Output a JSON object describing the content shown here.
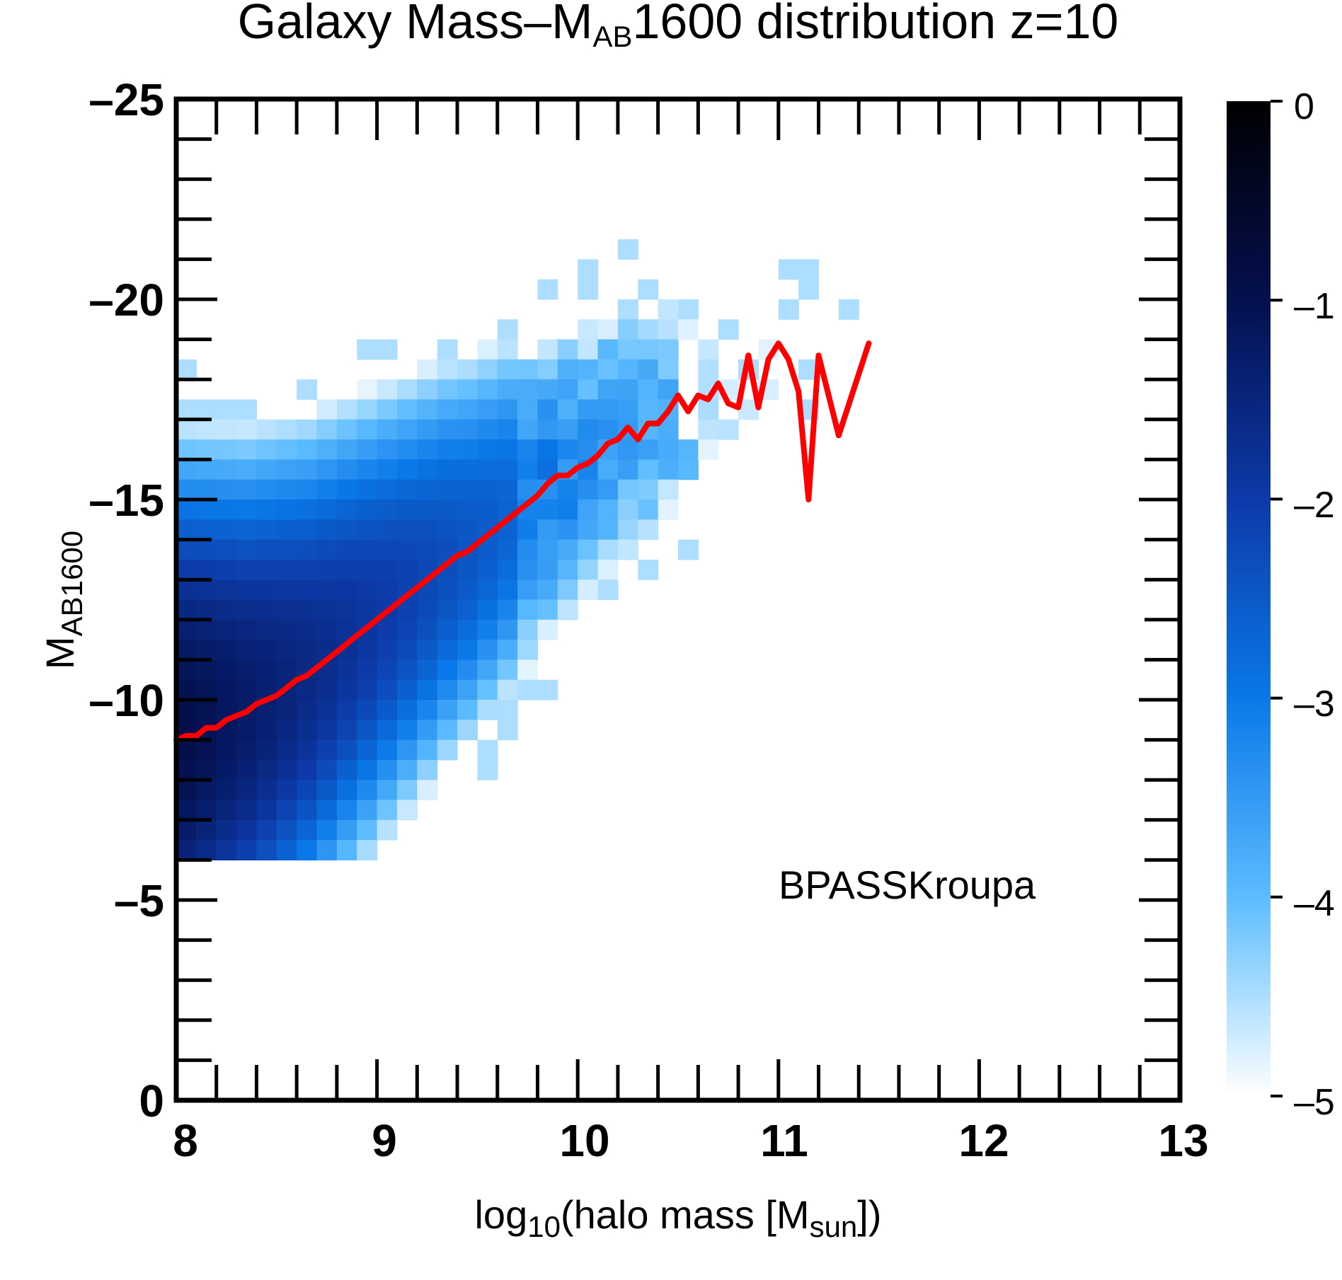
{
  "chart_data": {
    "type": "heatmap",
    "title": {
      "prefix": "Galaxy Mass–M",
      "subscript": "AB",
      "suffix": "1600 distribution z=10"
    },
    "xlabel": {
      "prefix": "log",
      "subscript": "10",
      "middle": "(halo mass [M",
      "subscript2": "sun",
      "suffix": "])"
    },
    "ylabel": {
      "main": "M",
      "subscript": "AB1600"
    },
    "xlim": [
      8,
      13
    ],
    "ylim": [
      0,
      -25
    ],
    "x_ticks": [
      "8",
      "9",
      "10",
      "11",
      "12",
      "13"
    ],
    "y_ticks": [
      "0",
      "–5",
      "–10",
      "–15",
      "–20",
      "–25"
    ],
    "annotation": "BPASSKroupa",
    "colorbar": {
      "range": [
        -5,
        0
      ],
      "ticks": [
        "0",
        "–1",
        "–2",
        "–3",
        "–4",
        "–5"
      ],
      "colors": [
        "#ffffff",
        "#5cbcff",
        "#0a78e8",
        "#0d3aa8",
        "#04104f",
        "#000000"
      ]
    },
    "density_band": {
      "description": "log10 fraction density; ridge follows median relation, width ~5 mag at low mass narrowing to scattered cells above log M ~ 10.5",
      "x_start": 8.0,
      "x_end": 11.5,
      "bin_x": 0.1,
      "bin_y": 0.5
    },
    "median_line": {
      "name": "median",
      "color": "#ff0000",
      "x": [
        8.0,
        8.05,
        8.1,
        8.15,
        8.2,
        8.25,
        8.3,
        8.35,
        8.4,
        8.45,
        8.5,
        8.55,
        8.6,
        8.65,
        8.7,
        8.75,
        8.8,
        8.85,
        8.9,
        8.95,
        9.0,
        9.05,
        9.1,
        9.15,
        9.2,
        9.25,
        9.3,
        9.35,
        9.4,
        9.45,
        9.5,
        9.55,
        9.6,
        9.65,
        9.7,
        9.75,
        9.8,
        9.85,
        9.9,
        9.95,
        10.0,
        10.05,
        10.1,
        10.15,
        10.2,
        10.25,
        10.3,
        10.35,
        10.4,
        10.45,
        10.5,
        10.55,
        10.6,
        10.65,
        10.7,
        10.75,
        10.8,
        10.85,
        10.9,
        10.95,
        11.0,
        11.05,
        11.1,
        11.15,
        11.2,
        11.3,
        11.45
      ],
      "y": [
        -9.0,
        -9.1,
        -9.1,
        -9.3,
        -9.3,
        -9.5,
        -9.6,
        -9.7,
        -9.9,
        -10.0,
        -10.1,
        -10.3,
        -10.5,
        -10.6,
        -10.8,
        -11.0,
        -11.2,
        -11.4,
        -11.6,
        -11.8,
        -12.0,
        -12.2,
        -12.4,
        -12.6,
        -12.8,
        -13.0,
        -13.2,
        -13.4,
        -13.6,
        -13.7,
        -13.9,
        -14.1,
        -14.3,
        -14.5,
        -14.7,
        -14.9,
        -15.1,
        -15.4,
        -15.6,
        -15.6,
        -15.8,
        -15.9,
        -16.1,
        -16.4,
        -16.5,
        -16.8,
        -16.5,
        -16.9,
        -16.9,
        -17.2,
        -17.6,
        -17.2,
        -17.6,
        -17.5,
        -17.9,
        -17.4,
        -17.3,
        -18.6,
        -17.3,
        -18.5,
        -18.9,
        -18.5,
        -17.7,
        -15.0,
        -18.6,
        -16.6,
        -18.9
      ]
    }
  }
}
